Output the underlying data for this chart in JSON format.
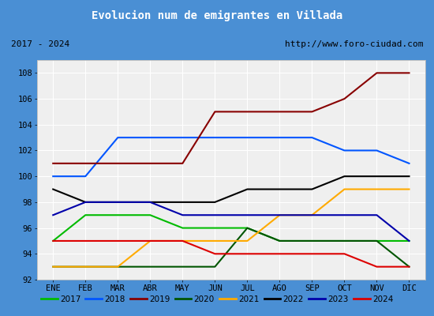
{
  "title": "Evolucion num de emigrantes en Villada",
  "subtitle_left": "2017 - 2024",
  "subtitle_right": "http://www.foro-ciudad.com",
  "months": [
    "ENE",
    "FEB",
    "MAR",
    "ABR",
    "MAY",
    "JUN",
    "JUL",
    "AGO",
    "SEP",
    "OCT",
    "NOV",
    "DIC"
  ],
  "ylim": [
    92,
    109
  ],
  "yticks": [
    92,
    94,
    96,
    98,
    100,
    102,
    104,
    106,
    108
  ],
  "series": {
    "2017": {
      "color": "#00bb00",
      "values": [
        95,
        97,
        97,
        97,
        96,
        96,
        96,
        95,
        95,
        95,
        95,
        95
      ]
    },
    "2018": {
      "color": "#0055ff",
      "values": [
        100,
        100,
        103,
        103,
        103,
        103,
        103,
        103,
        103,
        102,
        102,
        101
      ]
    },
    "2019": {
      "color": "#880000",
      "values": [
        101,
        101,
        101,
        101,
        101,
        105,
        105,
        105,
        105,
        106,
        108,
        108
      ]
    },
    "2020": {
      "color": "#005500",
      "values": [
        93,
        93,
        93,
        93,
        93,
        93,
        96,
        95,
        95,
        95,
        95,
        93
      ]
    },
    "2021": {
      "color": "#ffaa00",
      "values": [
        93,
        93,
        93,
        95,
        95,
        95,
        95,
        97,
        97,
        99,
        99,
        99
      ]
    },
    "2022": {
      "color": "#000000",
      "values": [
        99,
        98,
        98,
        98,
        98,
        98,
        99,
        99,
        99,
        100,
        100,
        100
      ]
    },
    "2023": {
      "color": "#0000aa",
      "values": [
        97,
        98,
        98,
        98,
        97,
        97,
        97,
        97,
        97,
        97,
        97,
        95
      ]
    },
    "2024": {
      "color": "#dd0000",
      "values": [
        95,
        95,
        95,
        95,
        95,
        94,
        94,
        94,
        94,
        94,
        93,
        93
      ]
    }
  },
  "title_bg": "#4a8fd4",
  "title_color": "#ffffff",
  "plot_bg": "#efefef",
  "grid_color": "#ffffff",
  "outer_bg": "#4a8fd4",
  "inner_bg": "#e0e0e0",
  "legend_bg": "#f0f0f0",
  "border_color": "#4a8fd4"
}
